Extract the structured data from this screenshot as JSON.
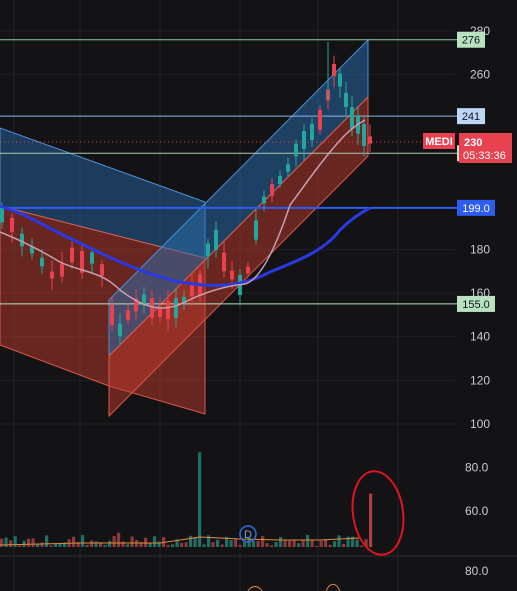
{
  "chart_data": {
    "type": "candlestick",
    "price_axis": {
      "ticks": [
        280,
        260,
        180,
        160,
        140,
        120,
        100
      ],
      "range": [
        92,
        283
      ]
    },
    "volume_axis": {
      "ticks": [
        80.0,
        60.0
      ],
      "range": [
        40,
        88
      ]
    },
    "lower_axis": {
      "ticks": [
        80.0
      ]
    },
    "horizontal_levels": [
      {
        "value": 276,
        "label": "276",
        "color": "#b9e3c0",
        "line": "#8fcf98"
      },
      {
        "value": 241,
        "label": "241",
        "color": "#bcd8f6",
        "line": "#8ab8e6"
      },
      {
        "value": 224,
        "label": "224",
        "color": "#b9e3c0",
        "line": "#a9c9ad"
      },
      {
        "value": 199.0,
        "label": "199.0",
        "color": "#2d5cf0",
        "line": "#2d5cf0"
      },
      {
        "value": 155.0,
        "label": "155.0",
        "color": "#b9e3c0",
        "line": "#b9e3c0"
      }
    ],
    "last_price": {
      "symbol": "MEDI",
      "value": "230",
      "countdown": "05:33:36",
      "color": "#e84150"
    },
    "event_marker": "D",
    "colors": {
      "up": "#26a69a",
      "down": "#e84150",
      "ma_slow": "#2a39e0",
      "ma_fast": "#c8a0b0",
      "channel_blue": "#2f7fd0",
      "channel_red": "#d04a3e",
      "annotation": "#e0141e"
    }
  }
}
